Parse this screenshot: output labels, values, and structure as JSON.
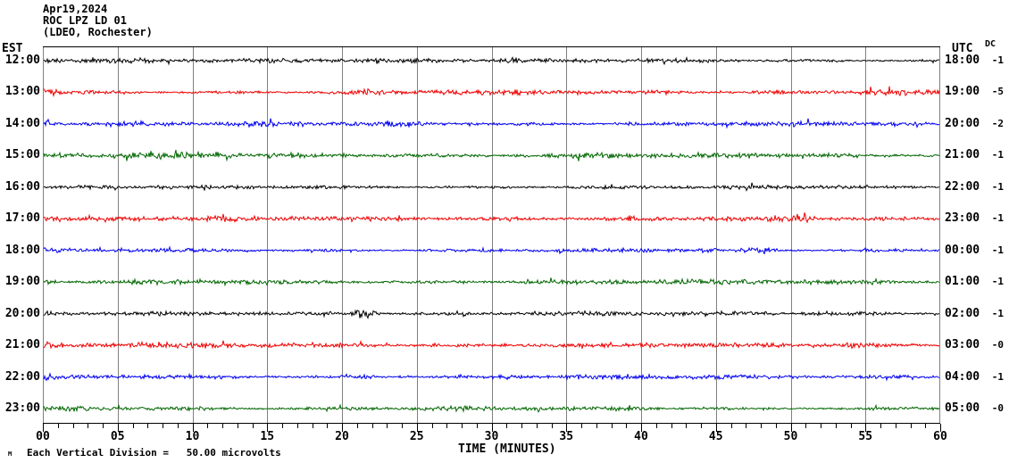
{
  "title": {
    "line1": "Apr19,2024",
    "line2": "ROC LPZ LD 01",
    "line3": "(LDEO, Rochester)"
  },
  "axes": {
    "left_header": "EST",
    "right_header": "UTC",
    "dc_header": "DC",
    "x_label": "TIME (MINUTES)",
    "x_major_tick_labels": [
      "00",
      "05",
      "10",
      "15",
      "20",
      "25",
      "30",
      "35",
      "40",
      "45",
      "50",
      "55",
      "60"
    ]
  },
  "footer": {
    "scale_note": "Each Vertical Division =   50.00 microvolts",
    "watermark": "M"
  },
  "chart_data": {
    "type": "line",
    "kind": "helicorder-seismogram",
    "station": "ROC LPZ LD 01",
    "network_note": "LDEO, Rochester",
    "date": "Apr19,2024",
    "x_range_minutes": [
      0,
      60
    ],
    "x_major_tick_minutes": 5,
    "x_minor_tick_minutes": 1,
    "grid": "vertical gray lines every 5 minutes",
    "vertical_division_microvolts": 50.0,
    "colors": {
      "grid": "#808080",
      "frame_top_bottom": "#000000",
      "frame_sides": "#808080",
      "trace_cycle": [
        "#000000",
        "#ee0000",
        "#0000ee",
        "#006600"
      ]
    },
    "rows": [
      {
        "est": "12:00",
        "utc": "18:00",
        "dc": "-1",
        "color": "#000000",
        "amp": 2.2,
        "bursts": [
          {
            "min": 20,
            "amp": 1.0,
            "sigma": 5
          }
        ]
      },
      {
        "est": "13:00",
        "utc": "19:00",
        "dc": "-5",
        "color": "#ee0000",
        "amp": 2.6,
        "bursts": [
          {
            "min": 0.4,
            "amp": 2.6,
            "sigma": 0.4
          },
          {
            "min": 21,
            "amp": 1.6,
            "sigma": 0.8
          },
          {
            "min": 56,
            "amp": 1.4,
            "sigma": 1.2
          }
        ]
      },
      {
        "est": "14:00",
        "utc": "20:00",
        "dc": "-2",
        "color": "#0000ee",
        "amp": 2.5,
        "bursts": [
          {
            "min": 0.4,
            "amp": 2.4,
            "sigma": 0.4
          },
          {
            "min": 6,
            "amp": 1.2,
            "sigma": 1.0
          }
        ]
      },
      {
        "est": "15:00",
        "utc": "21:00",
        "dc": "-1",
        "color": "#006600",
        "amp": 2.4,
        "bursts": [
          {
            "min": 7,
            "amp": 1.2,
            "sigma": 1.5
          },
          {
            "min": 37,
            "amp": 1.4,
            "sigma": 0.9
          }
        ]
      },
      {
        "est": "16:00",
        "utc": "22:00",
        "dc": "-1",
        "color": "#000000",
        "amp": 2.1,
        "bursts": [
          {
            "min": 53,
            "amp": 1.2,
            "sigma": 1.0
          }
        ]
      },
      {
        "est": "17:00",
        "utc": "23:00",
        "dc": "-1",
        "color": "#ee0000",
        "amp": 2.3,
        "bursts": [
          {
            "min": 0.5,
            "amp": 1.6,
            "sigma": 0.5
          },
          {
            "min": 51,
            "amp": 1.4,
            "sigma": 0.8
          }
        ]
      },
      {
        "est": "18:00",
        "utc": "00:00",
        "dc": "-1",
        "color": "#0000ee",
        "amp": 2.2,
        "bursts": [
          {
            "min": 0.5,
            "amp": 1.6,
            "sigma": 0.5
          },
          {
            "min": 48,
            "amp": 1.4,
            "sigma": 0.8
          }
        ]
      },
      {
        "est": "19:00",
        "utc": "01:00",
        "dc": "-1",
        "color": "#006600",
        "amp": 2.3,
        "bursts": [
          {
            "min": 0.4,
            "amp": 1.4,
            "sigma": 0.4
          }
        ]
      },
      {
        "est": "20:00",
        "utc": "02:00",
        "dc": "-1",
        "color": "#000000",
        "amp": 2.1,
        "bursts": [
          {
            "min": 21.5,
            "amp": 5.5,
            "sigma": 0.55
          },
          {
            "min": 0.4,
            "amp": 1.2,
            "sigma": 0.4
          }
        ]
      },
      {
        "est": "21:00",
        "utc": "03:00",
        "dc": "-0",
        "color": "#ee0000",
        "amp": 2.4,
        "bursts": [
          {
            "min": 0.4,
            "amp": 2.0,
            "sigma": 0.4
          },
          {
            "min": 54,
            "amp": 1.5,
            "sigma": 1.0
          }
        ]
      },
      {
        "est": "22:00",
        "utc": "04:00",
        "dc": "-1",
        "color": "#0000ee",
        "amp": 2.3,
        "bursts": [
          {
            "min": 0.4,
            "amp": 1.8,
            "sigma": 0.4
          },
          {
            "min": 21,
            "amp": 1.3,
            "sigma": 0.8
          }
        ]
      },
      {
        "est": "23:00",
        "utc": "05:00",
        "dc": "-0",
        "color": "#006600",
        "amp": 2.3,
        "bursts": [
          {
            "min": 0.4,
            "amp": 1.4,
            "sigma": 0.4
          }
        ]
      }
    ],
    "events": [
      {
        "row_est": "20:00",
        "row_utc": "02:00",
        "minute": 21.5,
        "description": "small high-amplitude burst on black trace"
      }
    ]
  }
}
